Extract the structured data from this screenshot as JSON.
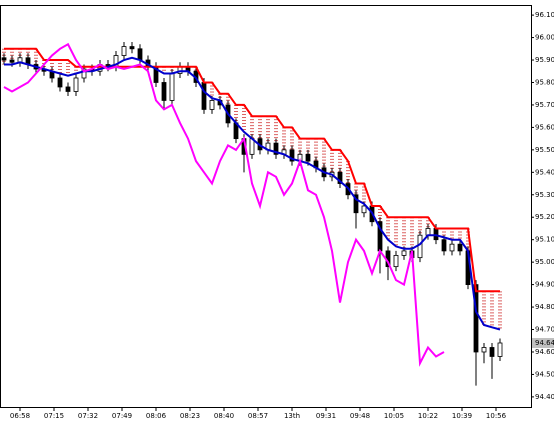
{
  "chart_data": {
    "type": "candlestick",
    "open": [
      95.91,
      95.9,
      95.89,
      95.91,
      95.88,
      95.86,
      95.85,
      95.82,
      95.78,
      95.76,
      95.82,
      95.86,
      95.85,
      95.88,
      95.87,
      95.92,
      95.96,
      95.95,
      95.9,
      95.87,
      95.8,
      95.72,
      95.84,
      95.87,
      95.85,
      95.8,
      95.68,
      95.72,
      95.7,
      95.62,
      95.55,
      95.48,
      95.55,
      95.5,
      95.53,
      95.48,
      95.5,
      95.45,
      95.48,
      95.45,
      95.42,
      95.38,
      95.4,
      95.35,
      95.3,
      95.22,
      95.25,
      95.18,
      95.05,
      94.98,
      95.03,
      95.05,
      95.02,
      95.12,
      95.15,
      95.1,
      95.05,
      95.08,
      95.05,
      94.9,
      94.6,
      94.62,
      94.58
    ],
    "high": [
      95.93,
      95.92,
      95.93,
      95.93,
      95.9,
      95.88,
      95.87,
      95.84,
      95.8,
      95.84,
      95.88,
      95.88,
      95.9,
      95.9,
      95.94,
      95.98,
      95.98,
      95.97,
      95.92,
      95.89,
      95.82,
      95.86,
      95.89,
      95.89,
      95.87,
      95.82,
      95.74,
      95.74,
      95.72,
      95.64,
      95.57,
      95.57,
      95.57,
      95.55,
      95.55,
      95.52,
      95.52,
      95.5,
      95.5,
      95.47,
      95.44,
      95.42,
      95.42,
      95.37,
      95.32,
      95.27,
      95.27,
      95.2,
      95.07,
      95.05,
      95.07,
      95.07,
      95.14,
      95.17,
      95.17,
      95.12,
      95.1,
      95.1,
      95.07,
      94.92,
      94.64,
      94.64,
      94.66
    ],
    "low": [
      95.88,
      95.87,
      95.87,
      95.86,
      95.84,
      95.83,
      95.8,
      95.76,
      95.74,
      95.74,
      95.8,
      95.83,
      95.83,
      95.85,
      95.85,
      95.9,
      95.93,
      95.88,
      95.85,
      95.78,
      95.68,
      95.7,
      95.82,
      95.83,
      95.78,
      95.66,
      95.66,
      95.68,
      95.6,
      95.53,
      95.4,
      95.46,
      95.48,
      95.48,
      95.46,
      95.46,
      95.43,
      95.43,
      95.43,
      95.4,
      95.36,
      95.36,
      95.33,
      95.28,
      95.15,
      95.2,
      95.16,
      94.95,
      94.92,
      94.96,
      95.01,
      95.0,
      95.0,
      95.1,
      95.08,
      95.03,
      95.03,
      95.03,
      94.88,
      94.45,
      94.55,
      94.48,
      94.56
    ],
    "close": [
      95.9,
      95.89,
      95.91,
      95.88,
      95.86,
      95.85,
      95.82,
      95.78,
      95.76,
      95.82,
      95.86,
      95.85,
      95.88,
      95.87,
      95.92,
      95.96,
      95.95,
      95.9,
      95.87,
      95.8,
      95.72,
      95.84,
      95.87,
      95.85,
      95.8,
      95.68,
      95.72,
      95.7,
      95.62,
      95.55,
      95.48,
      95.55,
      95.5,
      95.53,
      95.48,
      95.5,
      95.45,
      95.48,
      95.45,
      95.42,
      95.38,
      95.4,
      95.35,
      95.3,
      95.22,
      95.25,
      95.18,
      95.05,
      94.98,
      95.03,
      95.05,
      95.02,
      95.12,
      95.15,
      95.1,
      95.05,
      95.08,
      95.05,
      94.9,
      94.6,
      94.62,
      94.58,
      94.64
    ],
    "lines": [
      {
        "color": "#ff0000",
        "values": [
          95.95,
          95.95,
          95.95,
          95.95,
          95.95,
          95.9,
          95.9,
          95.9,
          95.9,
          95.87,
          95.87,
          95.87,
          95.87,
          95.87,
          95.87,
          95.87,
          95.87,
          95.87,
          95.87,
          95.87,
          95.87,
          95.87,
          95.87,
          95.87,
          95.87,
          95.8,
          95.8,
          95.75,
          95.75,
          95.7,
          95.7,
          95.65,
          95.65,
          95.65,
          95.65,
          95.6,
          95.6,
          95.55,
          95.55,
          95.55,
          95.55,
          95.5,
          95.5,
          95.45,
          95.35,
          95.35,
          95.25,
          95.25,
          95.2,
          95.2,
          95.2,
          95.2,
          95.2,
          95.2,
          95.15,
          95.15,
          95.15,
          95.15,
          95.15,
          94.87,
          94.87,
          94.87,
          94.87
        ]
      },
      {
        "color": "#0000cc",
        "values": [
          95.88,
          95.88,
          95.89,
          95.88,
          95.87,
          95.86,
          95.85,
          95.84,
          95.83,
          95.84,
          95.85,
          95.85,
          95.86,
          95.87,
          95.88,
          95.9,
          95.91,
          95.9,
          95.88,
          95.86,
          95.84,
          95.84,
          95.85,
          95.85,
          95.82,
          95.76,
          95.73,
          95.72,
          95.66,
          95.62,
          95.58,
          95.55,
          95.52,
          95.5,
          95.49,
          95.48,
          95.46,
          95.45,
          95.44,
          95.42,
          95.4,
          95.39,
          95.36,
          95.33,
          95.28,
          95.26,
          95.22,
          95.15,
          95.1,
          95.07,
          95.06,
          95.06,
          95.08,
          95.12,
          95.12,
          95.11,
          95.1,
          95.1,
          95.05,
          94.78,
          94.72,
          94.71,
          94.7
        ]
      },
      {
        "color": "#ff00ff",
        "values": [
          95.78,
          95.76,
          95.78,
          95.8,
          95.84,
          95.88,
          95.92,
          95.95,
          95.97,
          95.9,
          95.85,
          95.86,
          95.88,
          95.86,
          95.87,
          95.86,
          95.87,
          95.88,
          95.85,
          95.72,
          95.68,
          95.7,
          95.62,
          95.55,
          95.45,
          95.4,
          95.35,
          95.45,
          95.52,
          95.5,
          95.55,
          95.35,
          95.25,
          95.4,
          95.38,
          95.3,
          95.35,
          95.45,
          95.32,
          95.3,
          95.2,
          95.05,
          94.82,
          95.0,
          95.1,
          95.05,
          94.95,
          95.05,
          95.0,
          94.92,
          94.9,
          95.05,
          94.55,
          94.62,
          94.58,
          94.6,
          null,
          null,
          null,
          null,
          null,
          null,
          null
        ]
      }
    ],
    "cloud_color": "#cc2222",
    "current_price": 94.64,
    "xlim": [
      -0.5,
      65.875
    ],
    "ylim": [
      94.355,
      96.145
    ],
    "xticks": [
      {
        "value": 2,
        "label": "06:58"
      },
      {
        "value": 6.25,
        "label": "07:15"
      },
      {
        "value": 10.5,
        "label": "07:32"
      },
      {
        "value": 14.75,
        "label": "07:49"
      },
      {
        "value": 19,
        "label": "08:06"
      },
      {
        "value": 23.25,
        "label": "08:23"
      },
      {
        "value": 27.5,
        "label": "08:40"
      },
      {
        "value": 31.75,
        "label": "08:57"
      },
      {
        "value": 36,
        "label": "13th"
      },
      {
        "value": 40.25,
        "label": "09:31"
      },
      {
        "value": 44.5,
        "label": "09:48"
      },
      {
        "value": 48.75,
        "label": "10:05"
      },
      {
        "value": 53,
        "label": "10:22"
      },
      {
        "value": 57.25,
        "label": "10:39"
      },
      {
        "value": 61.5,
        "label": "10:56"
      }
    ],
    "yticks": [
      {
        "value": 96.1,
        "label": "96.10"
      },
      {
        "value": 96.0,
        "label": "96.00"
      },
      {
        "value": 95.9,
        "label": "95.90"
      },
      {
        "value": 95.8,
        "label": "95.80"
      },
      {
        "value": 95.7,
        "label": "95.70"
      },
      {
        "value": 95.6,
        "label": "95.60"
      },
      {
        "value": 95.5,
        "label": "95.50"
      },
      {
        "value": 95.4,
        "label": "95.40"
      },
      {
        "value": 95.3,
        "label": "95.30"
      },
      {
        "value": 95.2,
        "label": "95.20"
      },
      {
        "value": 95.1,
        "label": "95.10"
      },
      {
        "value": 95.0,
        "label": "95.00"
      },
      {
        "value": 94.9,
        "label": "94.90"
      },
      {
        "value": 94.8,
        "label": "94.80"
      },
      {
        "value": 94.7,
        "label": "94.70"
      },
      {
        "value": 94.6,
        "label": "94.60"
      },
      {
        "value": 94.5,
        "label": "94.50"
      },
      {
        "value": 94.4,
        "label": "94.40"
      }
    ]
  }
}
